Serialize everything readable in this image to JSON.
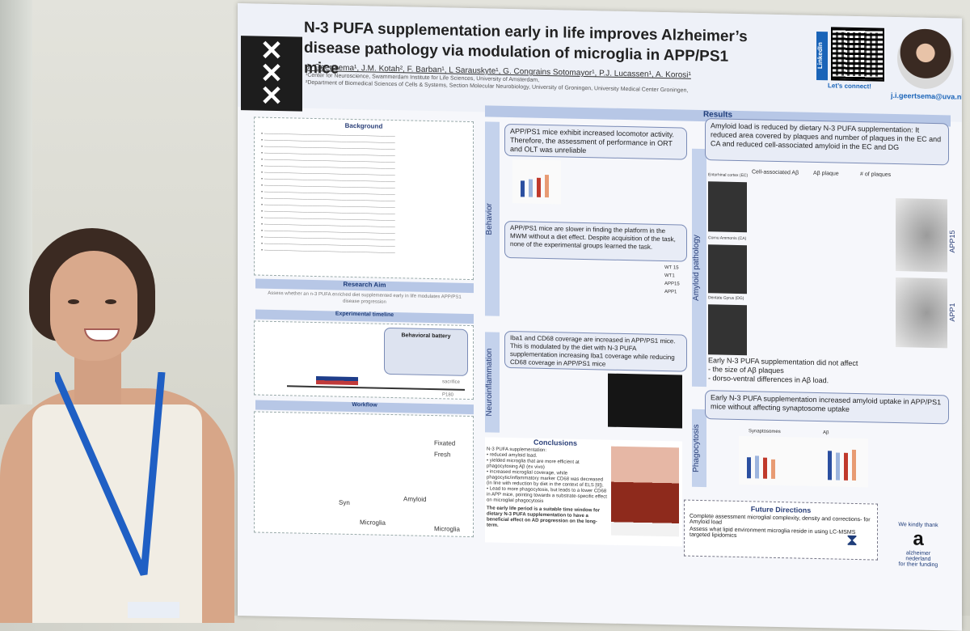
{
  "poster": {
    "title": "N-3 PUFA supplementation early in life improves Alzheimer’s disease pathology via modulation of microglia in APP/PS1 mice",
    "authors": "J. Geertsema¹, J.M. Kotah², F. Barban¹, L Sarauskyte¹, G. Congrains Sotomayor¹, P.J. Lucassen¹, A. Korosi¹",
    "affiliation_1": "¹Center for Neuroscience, Swammerdam Institute for Life Sciences, University of Amsterdam,",
    "affiliation_2": "²Department of Biomedical Sciences of Cells & Systems, Section Molecular Neurobiology, University of Groningen, University Medical Center Groningen,",
    "linkedin_label": "LinkedIn",
    "connect_label": "Let’s connect!",
    "email": "j.i.geertsema@uva.nl",
    "background_heading": "Background",
    "research_aim_heading": "Research Aim",
    "research_aim_text": "Assess whether an n-3 PUFA enriched diet supplemented early in life modulates APP/PS1 disease progression",
    "timeline_heading": "Experimental timeline",
    "behavioral_battery": "Behavioral battery",
    "workflow_heading": "Workflow",
    "fixated": "Fixated",
    "fresh": "Fresh",
    "microglia": "Microglia",
    "amyloid": "Amyloid",
    "syn": "Syn",
    "results_heading": "Results",
    "behavior_label": "Behavior",
    "behavior_box_1": "APP/PS1 mice exhibit increased locomotor activity. Therefore, the assessment of performance in ORT and OLT was unreliable",
    "behavior_box_2": "APP/PS1 mice are slower in finding the platform in the MWM without a diet effect. Despite acquisition of the task, none of the experimental groups learned the task.",
    "legend_1": "WT 15",
    "legend_2": "WT1",
    "legend_3": "APP15",
    "legend_4": "APP1",
    "neuro_label": "Neuroinflammation",
    "neuro_box": "Iba1 and CD68 coverage are increased in APP/PS1 mice. This is modulated by the diet with N-3 PUFA supplementation increasing Iba1 coverage while reducing CD68 coverage in APP/PS1 mice",
    "amyloid_label": "Amyloid pathology",
    "amyloid_box": "Amyloid load is reduced by dietary N-3 PUFA supplementation: It reduced area covered by plaques and number of plaques in the EC and CA and reduced cell-associated amyloid in the EC and DG",
    "col_1": "Cell-associated Aβ",
    "col_2": "Aβ plaque",
    "col_3": "# of plaques",
    "region_1": "Entorhinal cortex (EC)",
    "region_2": "Cornu Ammonis (CA)",
    "region_3": "Dentate Gyrus (DG)",
    "app15": "APP15",
    "app1": "APP1",
    "amyloid_note_1": "Early N-3 PUFA supplementation did not affect",
    "amyloid_note_2": "- the size of Aβ plaques",
    "amyloid_note_3": "- dorso-ventral differences in Aβ load.",
    "phago_label": "Phagocytosis",
    "phago_box": "Early N-3 PUFA supplementation increased amyloid uptake in APP/PS1 mice without affecting synaptosome uptake",
    "synaptosomes": "Synaptosomes",
    "ab": "Aβ",
    "conclusions_heading": "Conclusions",
    "conclusions_intro": "N-3 PUFA supplementation:",
    "conclusion_1": "• reduced amyloid load.",
    "conclusion_2": "• yielded microglia that are more efficient at phagocytosing Aβ (ex vivo)",
    "conclusion_3": "• increased microglial coverage, while phagocytic/inflammatory marker CD68 was decreased (in line with reduction by diet in the context of ELS [9]).",
    "conclusion_4": "• Lead to more phagocytosis, but leads to a lower CD68 in APP mice, pointing towards a substrate-specific effect on microglial phagocytosis",
    "conclusion_bold": "The early life period is a suitable time window for dietary N-3 PUFA supplementation to have a beneficial effect on AD progression on the long-term.",
    "future_heading": "Future Directions",
    "future_1": "Complete assessment microglial complexity, density and corrections- for Amyloid load",
    "future_2": "Assess what lipid environment microglia reside in using LC-MSMS targeted lipidomics",
    "thanks": "We kindly thank",
    "sponsor_1": "alzheimer",
    "sponsor_2": "nederland",
    "sponsor_3": "for their funding",
    "sacrifice": "sacrifice",
    "p180": "P180"
  },
  "colors": {
    "accent": "#b7c7e6",
    "lanyard": "#1f5fc4",
    "box": "#e8ecf6"
  }
}
